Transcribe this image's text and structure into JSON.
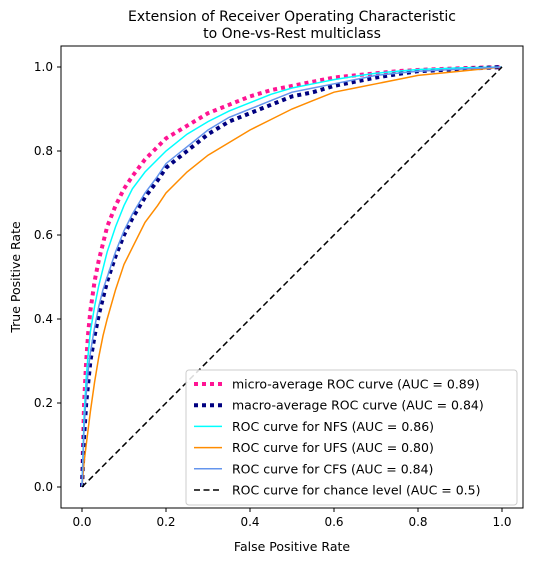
{
  "chart_data": {
    "type": "line",
    "title_lines": [
      "Extension of Receiver Operating Characteristic",
      "to One-vs-Rest multiclass"
    ],
    "xlabel": "False Positive Rate",
    "ylabel": "True Positive Rate",
    "xlim": [
      -0.05,
      1.05
    ],
    "ylim": [
      -0.05,
      1.05
    ],
    "xticks": [
      0.0,
      0.2,
      0.4,
      0.6,
      0.8,
      1.0
    ],
    "xtick_labels": [
      "0.0",
      "0.2",
      "0.4",
      "0.6",
      "0.8",
      "1.0"
    ],
    "yticks": [
      0.0,
      0.2,
      0.4,
      0.6,
      0.8,
      1.0
    ],
    "ytick_labels": [
      "0.0",
      "0.2",
      "0.4",
      "0.6",
      "0.8",
      "1.0"
    ],
    "legend_position": "lower-right",
    "series": [
      {
        "name": "micro-average ROC curve (AUC = 0.89)",
        "color": "#ff1493",
        "line_style": "dotted",
        "x": [
          0,
          0.005,
          0.01,
          0.015,
          0.02,
          0.03,
          0.04,
          0.05,
          0.06,
          0.08,
          0.1,
          0.12,
          0.15,
          0.18,
          0.2,
          0.25,
          0.3,
          0.35,
          0.4,
          0.45,
          0.5,
          0.55,
          0.6,
          0.65,
          0.7,
          0.75,
          0.8,
          0.9,
          1.0
        ],
        "y": [
          0,
          0.2,
          0.3,
          0.37,
          0.42,
          0.49,
          0.54,
          0.58,
          0.62,
          0.67,
          0.71,
          0.74,
          0.78,
          0.81,
          0.83,
          0.86,
          0.89,
          0.91,
          0.93,
          0.945,
          0.955,
          0.965,
          0.975,
          0.98,
          0.985,
          0.99,
          0.993,
          0.997,
          1.0
        ]
      },
      {
        "name": "macro-average ROC curve (AUC = 0.84)",
        "color": "#000080",
        "line_style": "dotted",
        "x": [
          0,
          0.005,
          0.01,
          0.015,
          0.02,
          0.03,
          0.04,
          0.05,
          0.06,
          0.08,
          0.1,
          0.12,
          0.15,
          0.18,
          0.2,
          0.25,
          0.3,
          0.35,
          0.4,
          0.45,
          0.5,
          0.55,
          0.6,
          0.65,
          0.7,
          0.75,
          0.8,
          0.9,
          1.0
        ],
        "y": [
          0,
          0.12,
          0.2,
          0.25,
          0.3,
          0.36,
          0.41,
          0.45,
          0.49,
          0.55,
          0.6,
          0.64,
          0.69,
          0.73,
          0.76,
          0.8,
          0.84,
          0.87,
          0.89,
          0.91,
          0.93,
          0.94,
          0.955,
          0.965,
          0.975,
          0.983,
          0.99,
          0.995,
          1.0
        ]
      },
      {
        "name": "ROC curve for NFS (AUC = 0.86)",
        "color": "#00ffff",
        "line_style": "solid",
        "x": [
          0,
          0.005,
          0.01,
          0.015,
          0.02,
          0.03,
          0.04,
          0.05,
          0.06,
          0.08,
          0.1,
          0.12,
          0.15,
          0.18,
          0.2,
          0.25,
          0.3,
          0.35,
          0.4,
          0.45,
          0.5,
          0.55,
          0.6,
          0.65,
          0.7,
          0.75,
          0.8,
          0.9,
          1.0
        ],
        "y": [
          0,
          0.17,
          0.26,
          0.32,
          0.37,
          0.43,
          0.48,
          0.52,
          0.56,
          0.62,
          0.67,
          0.71,
          0.75,
          0.78,
          0.8,
          0.84,
          0.87,
          0.895,
          0.915,
          0.935,
          0.95,
          0.96,
          0.97,
          0.978,
          0.985,
          0.99,
          0.994,
          0.998,
          1.0
        ]
      },
      {
        "name": "ROC curve for UFS (AUC = 0.80)",
        "color": "#ff8c00",
        "line_style": "solid",
        "x": [
          0,
          0.005,
          0.01,
          0.015,
          0.02,
          0.03,
          0.04,
          0.05,
          0.06,
          0.08,
          0.1,
          0.12,
          0.15,
          0.18,
          0.2,
          0.25,
          0.3,
          0.35,
          0.4,
          0.45,
          0.5,
          0.55,
          0.6,
          0.65,
          0.7,
          0.75,
          0.8,
          0.9,
          1.0
        ],
        "y": [
          0,
          0.06,
          0.1,
          0.14,
          0.18,
          0.25,
          0.31,
          0.36,
          0.4,
          0.47,
          0.53,
          0.57,
          0.63,
          0.67,
          0.7,
          0.75,
          0.79,
          0.82,
          0.85,
          0.875,
          0.9,
          0.92,
          0.94,
          0.95,
          0.96,
          0.97,
          0.98,
          0.99,
          1.0
        ]
      },
      {
        "name": "ROC curve for CFS (AUC = 0.84)",
        "color": "#6495ed",
        "line_style": "solid",
        "x": [
          0,
          0.005,
          0.01,
          0.015,
          0.02,
          0.03,
          0.04,
          0.05,
          0.06,
          0.08,
          0.1,
          0.12,
          0.15,
          0.18,
          0.2,
          0.25,
          0.3,
          0.35,
          0.4,
          0.45,
          0.5,
          0.55,
          0.6,
          0.65,
          0.7,
          0.75,
          0.8,
          0.9,
          1.0
        ],
        "y": [
          0,
          0.14,
          0.22,
          0.28,
          0.32,
          0.38,
          0.43,
          0.47,
          0.5,
          0.56,
          0.61,
          0.65,
          0.7,
          0.74,
          0.77,
          0.81,
          0.85,
          0.88,
          0.9,
          0.92,
          0.94,
          0.95,
          0.96,
          0.97,
          0.98,
          0.985,
          0.99,
          0.995,
          1.0
        ]
      },
      {
        "name": "ROC curve for chance level (AUC = 0.5)",
        "color": "#000000",
        "line_style": "dashed",
        "x": [
          0,
          1
        ],
        "y": [
          0,
          1
        ]
      }
    ]
  }
}
